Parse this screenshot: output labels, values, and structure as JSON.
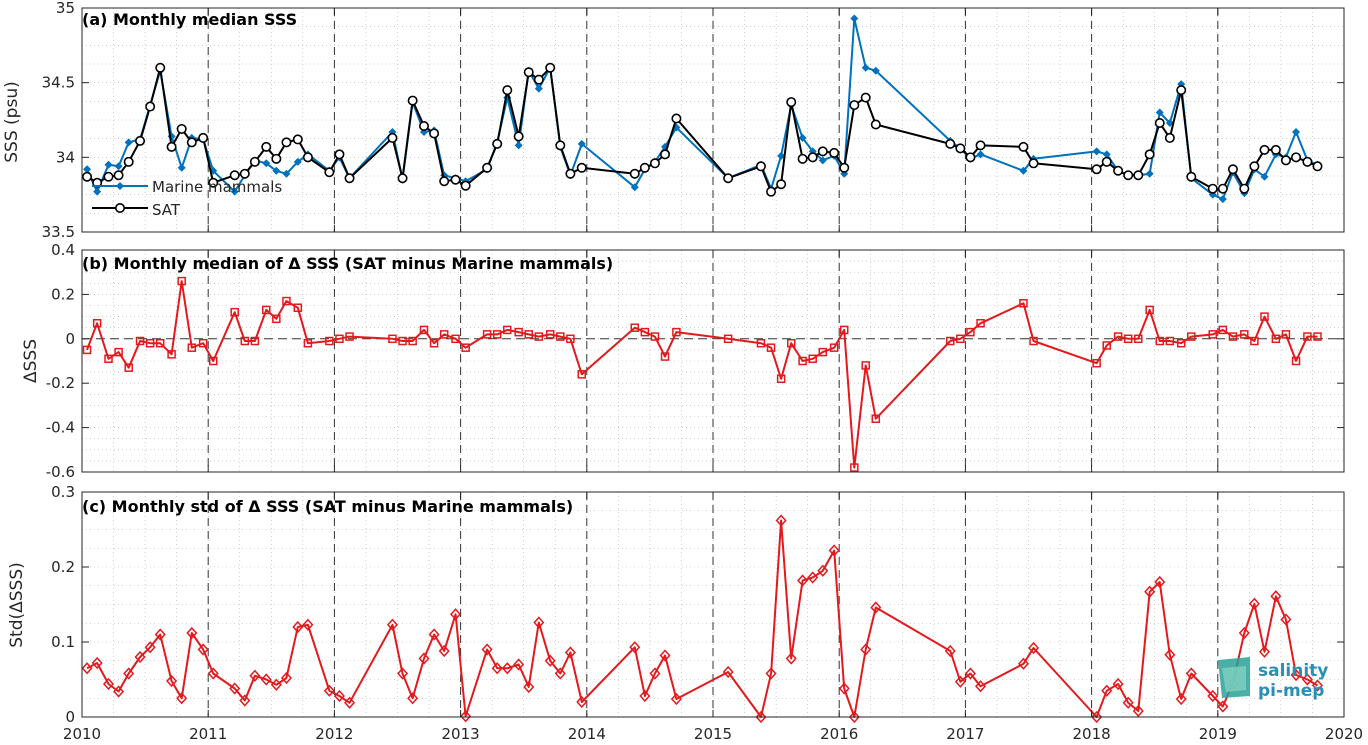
{
  "xaxis": {
    "ticks": [
      "2010",
      "2011",
      "2012",
      "2013",
      "2014",
      "2015",
      "2016",
      "2017",
      "2018",
      "2019",
      "2020"
    ],
    "range": [
      2010,
      2020
    ]
  },
  "logo": {
    "line1": "salinity",
    "line2": "pi-mep"
  },
  "colors": {
    "mammals": "#0072bd",
    "sat": "#000000",
    "delta": "#e31a1c",
    "frame": "#262626",
    "grid": "#b0b0b0"
  },
  "chart_data": [
    {
      "type": "line",
      "title": "(a) Monthly median SSS",
      "ylabel": "SSS (psu)",
      "ylim": [
        33.5,
        35
      ],
      "yticks": [
        "33.5",
        "34",
        "34.5",
        "35"
      ],
      "grid": true,
      "legend": {
        "placement": "left",
        "entries": [
          "Marine mammals",
          "SAT"
        ]
      },
      "x": [
        2010.04,
        2010.12,
        2010.21,
        2010.29,
        2010.37,
        2010.46,
        2010.54,
        2010.62,
        2010.71,
        2010.79,
        2010.87,
        2010.96,
        2011.04,
        2011.21,
        2011.29,
        2011.37,
        2011.46,
        2011.54,
        2011.62,
        2011.71,
        2011.79,
        2011.96,
        2012.04,
        2012.12,
        2012.46,
        2012.54,
        2012.62,
        2012.71,
        2012.79,
        2012.87,
        2012.96,
        2013.04,
        2013.21,
        2013.29,
        2013.37,
        2013.46,
        2013.54,
        2013.62,
        2013.71,
        2013.79,
        2013.87,
        2013.96,
        2014.38,
        2014.46,
        2014.54,
        2014.62,
        2014.71,
        2015.12,
        2015.38,
        2015.46,
        2015.54,
        2015.62,
        2015.71,
        2015.79,
        2015.87,
        2015.96,
        2016.04,
        2016.12,
        2016.21,
        2016.29,
        2016.88,
        2016.96,
        2017.04,
        2017.12,
        2017.46,
        2017.54,
        2018.04,
        2018.12,
        2018.21,
        2018.29,
        2018.37,
        2018.46,
        2018.54,
        2018.62,
        2018.71,
        2018.79,
        2018.96,
        2019.04,
        2019.12,
        2019.21,
        2019.29,
        2019.37,
        2019.46,
        2019.54,
        2019.62,
        2019.71,
        2019.79
      ],
      "series": [
        {
          "name": "Marine mammals",
          "marker": "diamond",
          "values": [
            33.92,
            33.77,
            33.95,
            33.94,
            34.1,
            34.12,
            34.35,
            34.58,
            34.14,
            33.93,
            34.13,
            34.12,
            33.91,
            33.77,
            33.88,
            33.98,
            33.96,
            33.91,
            33.89,
            33.97,
            34.02,
            33.91,
            34.0,
            33.86,
            34.17,
            33.85,
            34.37,
            34.17,
            34.18,
            33.88,
            33.86,
            33.84,
            33.92,
            34.1,
            34.4,
            34.08,
            34.58,
            34.46,
            34.6,
            34.07,
            33.88,
            34.09,
            33.8,
            33.92,
            33.97,
            34.07,
            34.2,
            33.86,
            33.95,
            33.79,
            34.01,
            34.35,
            34.13,
            34.04,
            33.98,
            34.01,
            33.89,
            34.93,
            34.6,
            34.58,
            34.11,
            34.06,
            33.99,
            34.02,
            33.91,
            33.99,
            34.04,
            34.02,
            33.91,
            33.88,
            33.88,
            33.89,
            34.3,
            34.23,
            34.49,
            33.86,
            33.75,
            33.72,
            33.9,
            33.76,
            33.92,
            33.87,
            34.02,
            34.0,
            34.17,
            33.98,
            33.95
          ]
        },
        {
          "name": "SAT",
          "marker": "circle",
          "values": [
            33.87,
            33.83,
            33.87,
            33.88,
            33.97,
            34.11,
            34.34,
            34.6,
            34.07,
            34.19,
            34.1,
            34.13,
            33.83,
            33.88,
            33.89,
            33.97,
            34.07,
            33.99,
            34.1,
            34.12,
            34.0,
            33.9,
            34.02,
            33.86,
            34.13,
            33.86,
            34.38,
            34.21,
            34.16,
            33.84,
            33.85,
            33.81,
            33.93,
            34.09,
            34.45,
            34.14,
            34.57,
            34.52,
            34.6,
            34.08,
            33.89,
            33.93,
            33.89,
            33.93,
            33.96,
            34.02,
            34.26,
            33.86,
            33.94,
            33.77,
            33.82,
            34.37,
            33.99,
            34.0,
            34.04,
            34.03,
            33.93,
            34.35,
            34.4,
            34.22,
            34.09,
            34.06,
            34.0,
            34.08,
            34.07,
            33.96,
            33.92,
            33.97,
            33.91,
            33.88,
            33.88,
            34.02,
            34.23,
            34.13,
            34.45,
            33.87,
            33.79,
            33.79,
            33.92,
            33.79,
            33.94,
            34.05,
            34.05,
            33.98,
            34.0,
            33.97,
            33.94
          ]
        }
      ]
    },
    {
      "type": "line",
      "title": "(b) Monthly median of Δ SSS (SAT minus Marine mammals)",
      "ylabel": "ΔSSS",
      "ylim": [
        -0.6,
        0.4
      ],
      "yticks": [
        "-0.6",
        "-0.4",
        "-0.2",
        "0",
        "0.2",
        "0.4"
      ],
      "grid": true,
      "zero_line": true,
      "x": [
        2010.04,
        2010.12,
        2010.21,
        2010.29,
        2010.37,
        2010.46,
        2010.54,
        2010.62,
        2010.71,
        2010.79,
        2010.87,
        2010.96,
        2011.04,
        2011.21,
        2011.29,
        2011.37,
        2011.46,
        2011.54,
        2011.62,
        2011.71,
        2011.79,
        2011.96,
        2012.04,
        2012.12,
        2012.46,
        2012.54,
        2012.62,
        2012.71,
        2012.79,
        2012.87,
        2012.96,
        2013.04,
        2013.21,
        2013.29,
        2013.37,
        2013.46,
        2013.54,
        2013.62,
        2013.71,
        2013.79,
        2013.87,
        2013.96,
        2014.38,
        2014.46,
        2014.54,
        2014.62,
        2014.71,
        2015.12,
        2015.38,
        2015.46,
        2015.54,
        2015.62,
        2015.71,
        2015.79,
        2015.87,
        2015.96,
        2016.04,
        2016.12,
        2016.21,
        2016.29,
        2016.88,
        2016.96,
        2017.04,
        2017.12,
        2017.46,
        2017.54,
        2018.04,
        2018.12,
        2018.21,
        2018.29,
        2018.37,
        2018.46,
        2018.54,
        2018.62,
        2018.71,
        2018.79,
        2018.96,
        2019.04,
        2019.12,
        2019.21,
        2019.29,
        2019.37,
        2019.46,
        2019.54,
        2019.62,
        2019.71,
        2019.79
      ],
      "series": [
        {
          "name": "",
          "marker": "square",
          "values": [
            -0.05,
            0.07,
            -0.09,
            -0.06,
            -0.13,
            -0.01,
            -0.02,
            -0.02,
            -0.07,
            0.26,
            -0.04,
            -0.02,
            -0.1,
            0.12,
            -0.01,
            -0.01,
            0.13,
            0.09,
            0.17,
            0.14,
            -0.02,
            -0.01,
            0.0,
            0.01,
            0.0,
            -0.01,
            -0.01,
            0.04,
            -0.02,
            0.02,
            0.0,
            -0.04,
            0.02,
            0.02,
            0.04,
            0.03,
            0.02,
            0.01,
            0.02,
            0.01,
            0.0,
            -0.16,
            0.05,
            0.03,
            0.01,
            -0.08,
            0.03,
            0.0,
            -0.02,
            -0.04,
            -0.18,
            -0.02,
            -0.1,
            -0.09,
            -0.06,
            -0.04,
            0.04,
            -0.58,
            -0.12,
            -0.36,
            -0.01,
            0.0,
            0.03,
            0.07,
            0.16,
            -0.01,
            -0.11,
            -0.03,
            0.01,
            0.0,
            0.0,
            0.13,
            -0.01,
            -0.01,
            -0.02,
            0.01,
            0.02,
            0.04,
            0.01,
            0.02,
            -0.01,
            0.1,
            0.0,
            0.02,
            -0.1,
            0.01,
            0.01
          ]
        }
      ]
    },
    {
      "type": "line",
      "title": "(c) Monthly std of Δ SSS (SAT minus Marine mammals)",
      "ylabel": "Std(ΔSSS)",
      "ylim": [
        0,
        0.3
      ],
      "yticks": [
        "0",
        "0.1",
        "0.2",
        "0.3"
      ],
      "grid": true,
      "x": [
        2010.04,
        2010.12,
        2010.21,
        2010.29,
        2010.37,
        2010.46,
        2010.54,
        2010.62,
        2010.71,
        2010.79,
        2010.87,
        2010.96,
        2011.04,
        2011.21,
        2011.29,
        2011.37,
        2011.46,
        2011.54,
        2011.62,
        2011.71,
        2011.79,
        2011.96,
        2012.04,
        2012.12,
        2012.46,
        2012.54,
        2012.62,
        2012.71,
        2012.79,
        2012.87,
        2012.96,
        2013.04,
        2013.21,
        2013.29,
        2013.37,
        2013.46,
        2013.54,
        2013.62,
        2013.71,
        2013.79,
        2013.87,
        2013.96,
        2014.38,
        2014.46,
        2014.54,
        2014.62,
        2014.71,
        2015.12,
        2015.38,
        2015.46,
        2015.54,
        2015.62,
        2015.71,
        2015.79,
        2015.87,
        2015.96,
        2016.04,
        2016.12,
        2016.21,
        2016.29,
        2016.88,
        2016.96,
        2017.04,
        2017.12,
        2017.46,
        2017.54,
        2018.04,
        2018.12,
        2018.21,
        2018.29,
        2018.37,
        2018.46,
        2018.54,
        2018.62,
        2018.71,
        2018.79,
        2018.96,
        2019.04,
        2019.12,
        2019.21,
        2019.29,
        2019.37,
        2019.46,
        2019.54,
        2019.62,
        2019.71,
        2019.79
      ],
      "series": [
        {
          "name": "",
          "marker": "diamond",
          "values": [
            0.065,
            0.072,
            0.044,
            0.034,
            0.058,
            0.08,
            0.093,
            0.11,
            0.048,
            0.025,
            0.112,
            0.09,
            0.058,
            0.038,
            0.022,
            0.055,
            0.05,
            0.043,
            0.052,
            0.12,
            0.123,
            0.035,
            0.028,
            0.019,
            0.123,
            0.058,
            0.025,
            0.078,
            0.11,
            0.088,
            0.137,
            0.001,
            0.09,
            0.065,
            0.065,
            0.07,
            0.04,
            0.126,
            0.075,
            0.058,
            0.086,
            0.02,
            0.093,
            0.028,
            0.058,
            0.082,
            0.024,
            0.06,
            0.0,
            0.058,
            0.262,
            0.078,
            0.182,
            0.186,
            0.195,
            0.222,
            0.038,
            0.0,
            0.09,
            0.146,
            0.088,
            0.047,
            0.058,
            0.041,
            0.071,
            0.092,
            0.0,
            0.035,
            0.044,
            0.019,
            0.008,
            0.167,
            0.18,
            0.083,
            0.024,
            0.058,
            0.028,
            0.014,
            0.045,
            0.112,
            0.151,
            0.087,
            0.161,
            0.13,
            0.056,
            0.05,
            0.042
          ]
        }
      ]
    }
  ]
}
